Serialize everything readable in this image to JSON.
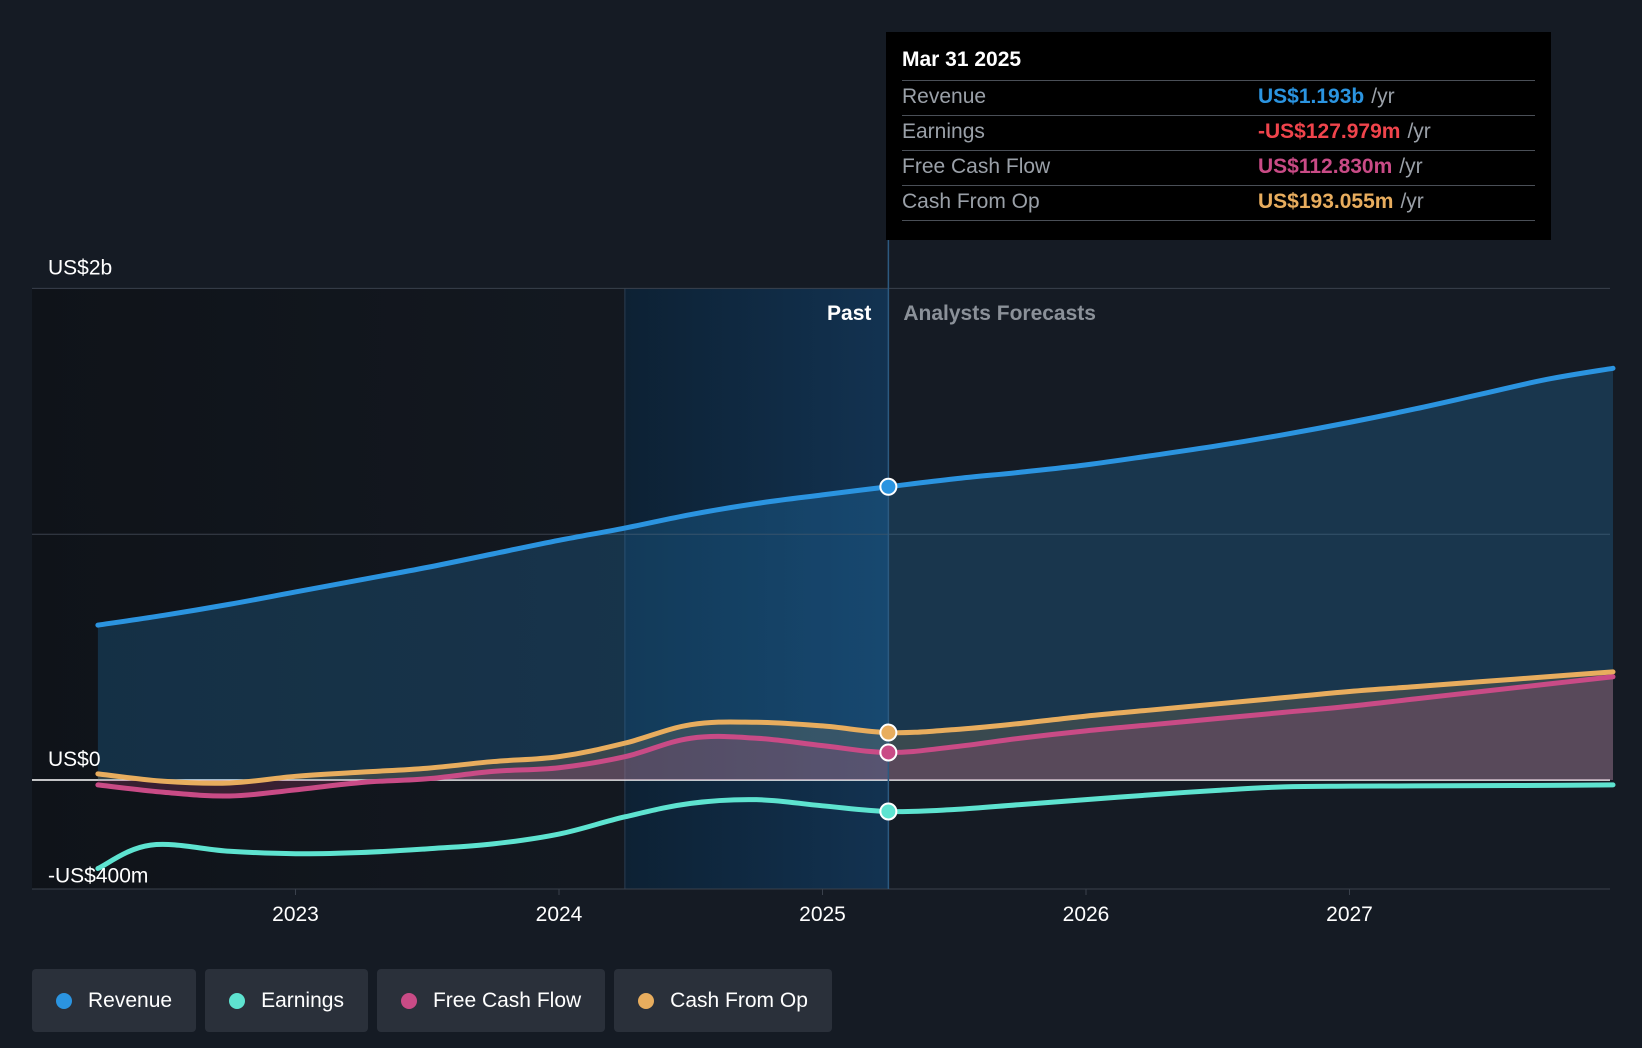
{
  "colors": {
    "background": "#151b24",
    "revenue": "#2b94e0",
    "earnings": "#5ee3d0",
    "free_cash_flow": "#c94b86",
    "cash_from_op": "#e8ad5e"
  },
  "tooltip": {
    "date": "Mar 31 2025",
    "rows": [
      {
        "label": "Revenue",
        "value": "US$1.193b",
        "unit": "/yr",
        "color": "#2b94e0"
      },
      {
        "label": "Earnings",
        "value": "-US$127.979m",
        "unit": "/yr",
        "color": "#f0444c"
      },
      {
        "label": "Free Cash Flow",
        "value": "US$112.830m",
        "unit": "/yr",
        "color": "#c94b86"
      },
      {
        "label": "Cash From Op",
        "value": "US$193.055m",
        "unit": "/yr",
        "color": "#e8ad5e"
      }
    ]
  },
  "legend": [
    {
      "label": "Revenue",
      "color": "#2b94e0"
    },
    {
      "label": "Earnings",
      "color": "#5ee3d0"
    },
    {
      "label": "Free Cash Flow",
      "color": "#c94b86"
    },
    {
      "label": "Cash From Op",
      "color": "#e8ad5e"
    }
  ],
  "chart_data": {
    "type": "area",
    "title": "",
    "y_unit": "US$ millions",
    "ylim": [
      -400,
      2000
    ],
    "xlim": [
      2022.0,
      2028.0
    ],
    "past_label": "Past",
    "forecast_label": "Analysts Forecasts",
    "divider_x": 2025.25,
    "highlight_start_x": 2024.25,
    "y_tick_labels": [
      {
        "value": 2000,
        "label": "US$2b"
      },
      {
        "value": 0,
        "label": "US$0"
      },
      {
        "value": -400,
        "label": "-US$400m"
      }
    ],
    "gridlines": [
      2000,
      1000
    ],
    "x_ticks": [
      2023,
      2024,
      2025,
      2026,
      2027
    ],
    "x_tick_labels": [
      "2023",
      "2024",
      "2025",
      "2026",
      "2027"
    ],
    "series": [
      {
        "name": "Revenue",
        "key": "revenue",
        "color": "#2b94e0",
        "fill": true,
        "marker_x": 2025.25,
        "x": [
          2022.25,
          2022.5,
          2022.75,
          2023.0,
          2023.25,
          2023.5,
          2023.75,
          2024.0,
          2024.25,
          2024.5,
          2024.75,
          2025.0,
          2025.25,
          2025.5,
          2025.75,
          2026.0,
          2026.25,
          2026.5,
          2026.75,
          2027.0,
          2027.25,
          2027.5,
          2027.75,
          2028.0
        ],
        "y": [
          630,
          670,
          715,
          765,
          815,
          865,
          920,
          975,
          1025,
          1080,
          1125,
          1160,
          1193,
          1225,
          1252,
          1282,
          1320,
          1360,
          1405,
          1455,
          1510,
          1570,
          1630,
          1675
        ]
      },
      {
        "name": "Cash From Op",
        "key": "cash_from_op",
        "color": "#e8ad5e",
        "fill": true,
        "marker_x": 2025.25,
        "x": [
          2022.25,
          2022.5,
          2022.75,
          2023.0,
          2023.25,
          2023.5,
          2023.75,
          2024.0,
          2024.25,
          2024.5,
          2024.75,
          2025.0,
          2025.25,
          2025.5,
          2025.75,
          2026.0,
          2026.25,
          2026.5,
          2026.75,
          2027.0,
          2027.25,
          2027.5,
          2027.75,
          2028.0
        ],
        "y": [
          25,
          -5,
          -12,
          15,
          32,
          48,
          75,
          95,
          150,
          225,
          235,
          220,
          193,
          205,
          230,
          260,
          285,
          310,
          335,
          360,
          380,
          400,
          420,
          440
        ]
      },
      {
        "name": "Free Cash Flow",
        "key": "free_cash_flow",
        "color": "#c94b86",
        "fill": true,
        "marker_x": 2025.25,
        "x": [
          2022.25,
          2022.5,
          2022.75,
          2023.0,
          2023.25,
          2023.5,
          2023.75,
          2024.0,
          2024.25,
          2024.5,
          2024.75,
          2025.0,
          2025.25,
          2025.5,
          2025.75,
          2026.0,
          2026.25,
          2026.5,
          2026.75,
          2027.0,
          2027.25,
          2027.5,
          2027.75,
          2028.0
        ],
        "y": [
          -20,
          -50,
          -65,
          -40,
          -10,
          5,
          35,
          50,
          95,
          170,
          170,
          140,
          112,
          135,
          170,
          200,
          225,
          250,
          275,
          300,
          330,
          360,
          390,
          420
        ]
      },
      {
        "name": "Earnings",
        "key": "earnings",
        "color": "#5ee3d0",
        "fill": false,
        "marker_x": 2025.25,
        "x": [
          2022.25,
          2022.45,
          2022.75,
          2023.0,
          2023.25,
          2023.5,
          2023.75,
          2024.0,
          2024.25,
          2024.5,
          2024.75,
          2025.0,
          2025.25,
          2025.5,
          2025.75,
          2026.0,
          2026.25,
          2026.5,
          2026.75,
          2027.0,
          2027.25,
          2027.5,
          2027.75,
          2028.0
        ],
        "y": [
          -360,
          -265,
          -290,
          -300,
          -295,
          -280,
          -260,
          -220,
          -150,
          -95,
          -80,
          -105,
          -128,
          -120,
          -100,
          -80,
          -60,
          -42,
          -28,
          -25,
          -24,
          -23,
          -22,
          -20
        ]
      }
    ]
  }
}
